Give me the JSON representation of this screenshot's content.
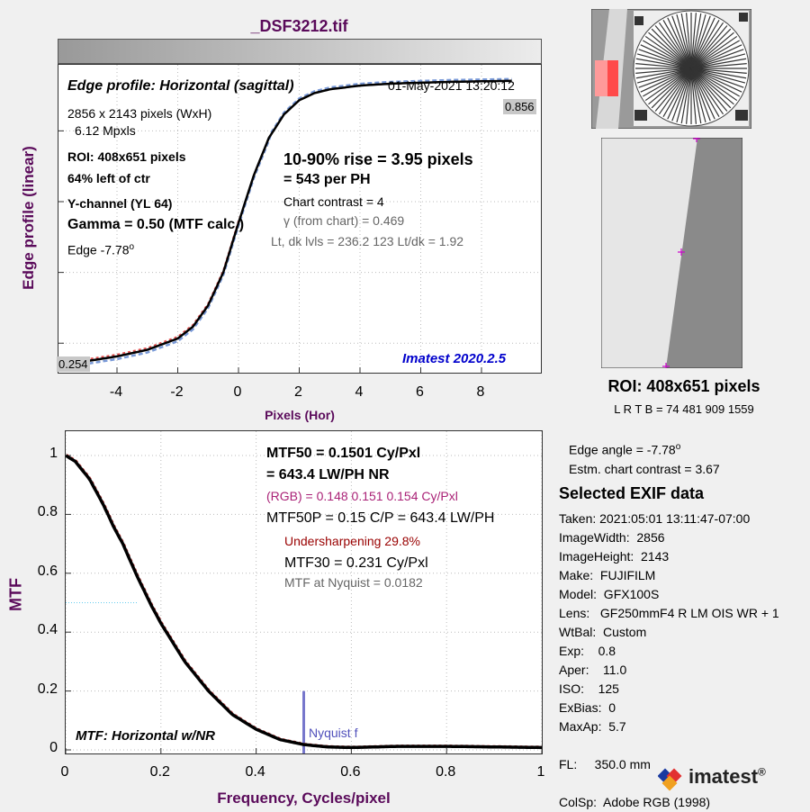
{
  "file_title": "_DSF3212.tif",
  "top_panel": {
    "title": "Edge profile: Horizontal (sagittal)",
    "datetime": "01-May-2021 13:20:12",
    "image_size": "2856 x 2143 pixels (WxH)",
    "mpixels": "6.12 Mpxls",
    "roi": "ROI:  408x651 pixels",
    "position": "64% left of ctr",
    "channel": "Y-channel  (YL 64)",
    "gamma": "Gamma = 0.50 (MTF calc.)",
    "edge_prefix": "Edge  -7.78",
    "edge_sup": "o",
    "rise": "10-90% rise = 3.95 pixels",
    "per_ph": "=    543 per PH",
    "chart_contrast": "Chart contrast = 4",
    "gamma_chart": "γ (from chart) = 0.469",
    "levels": "Lt, dk lvls = 236.2  123  Lt/dk = 1.92",
    "version": "Imatest 2020.2.5",
    "label_high": "0.856",
    "label_low": "0.254"
  },
  "bottom_panel": {
    "mtf50": "MTF50 = 0.1501 Cy/Pxl",
    "mtf50_lw": "= 643.4 LW/PH  NR",
    "rgb": "(RGB) = 0.148  0.151  0.154 Cy/Pxl",
    "mtf50p": "MTF50P = 0.15 C/P = 643.4 LW/PH",
    "undersharpening": "Undersharpening 29.8%",
    "mtf30": "MTF30 = 0.231 Cy/Pxl",
    "nyquist_mtf": "MTF at Nyquist = 0.0182",
    "plot_label": "MTF: Horizontal w/NR",
    "nyquist_label": "Nyquist f"
  },
  "side_panel": {
    "roi": "ROI:  408x651 pixels",
    "lrtb": "L R  T B = 74 481  909 1559",
    "edge_angle_prefix": "Edge angle = -7.78",
    "edge_angle_sup": "o",
    "estm_contrast": "Estm. chart contrast = 3.67",
    "exif_title": "Selected EXIF data",
    "exif": [
      "Taken: 2021:05:01 13:11:47-07:00",
      "ImageWidth:  2856",
      "ImageHeight:  2143",
      "Make:  FUJIFILM",
      "Model:  GFX100S",
      "Lens:   GF250mmF4 R LM OIS WR + 1",
      "WtBal:  Custom",
      "Exp:    0.8",
      "Aper:    11.0",
      "ISO:    125",
      "ExBias:  0",
      "MaxAp:  5.7",
      "",
      "FL:     350.0 mm",
      "",
      "ColSp:  Adobe RGB (1998)"
    ],
    "logo": "imatest",
    "logo_mark": "®"
  },
  "chart_data": [
    {
      "type": "line",
      "title": "Edge profile: Horizontal (sagittal)",
      "xlabel": "Pixels (Hor)",
      "ylabel": "Edge profile (linear)",
      "xlim": [
        -6,
        10
      ],
      "x_ticks": [
        "-4",
        "-2",
        "0",
        "2",
        "4",
        "6",
        "8"
      ],
      "x_tick_values": [
        -4,
        -2,
        0,
        2,
        4,
        6,
        8
      ],
      "grid": true,
      "series": [
        {
          "color": "#000000",
          "x": [
            -6,
            -5,
            -4,
            -3,
            -2,
            -1.5,
            -1,
            -0.5,
            0,
            0.5,
            1,
            1.5,
            2,
            2.5,
            3,
            4,
            5,
            6,
            7,
            8,
            9
          ],
          "y": [
            0.254,
            0.262,
            0.272,
            0.286,
            0.31,
            0.335,
            0.38,
            0.45,
            0.555,
            0.655,
            0.735,
            0.785,
            0.815,
            0.83,
            0.838,
            0.846,
            0.85,
            0.852,
            0.854,
            0.855,
            0.856
          ]
        }
      ]
    },
    {
      "type": "line",
      "xlabel": "Frequency, Cycles/pixel",
      "ylabel": "MTF",
      "xlim": [
        0,
        1
      ],
      "ylim": [
        0,
        1
      ],
      "x_ticks": [
        "0",
        "0.2",
        "0.4",
        "0.6",
        "0.8",
        "1"
      ],
      "x_tick_values": [
        0,
        0.2,
        0.4,
        0.6,
        0.8,
        1
      ],
      "y_ticks": [
        "0",
        "0.2",
        "0.4",
        "0.6",
        "0.8",
        "1"
      ],
      "y_tick_values": [
        0,
        0.2,
        0.4,
        0.6,
        0.8,
        1
      ],
      "grid": true,
      "nyquist": 0.5,
      "series": [
        {
          "color": "#000000",
          "x": [
            0,
            0.02,
            0.05,
            0.08,
            0.1,
            0.12,
            0.15,
            0.18,
            0.2,
            0.25,
            0.3,
            0.35,
            0.4,
            0.45,
            0.5,
            0.55,
            0.6,
            0.65,
            0.7,
            0.8,
            0.9,
            1.0
          ],
          "y": [
            1.0,
            0.98,
            0.92,
            0.83,
            0.76,
            0.7,
            0.59,
            0.49,
            0.43,
            0.3,
            0.2,
            0.12,
            0.07,
            0.035,
            0.018,
            0.01,
            0.008,
            0.01,
            0.012,
            0.012,
            0.01,
            0.008
          ]
        }
      ]
    }
  ]
}
